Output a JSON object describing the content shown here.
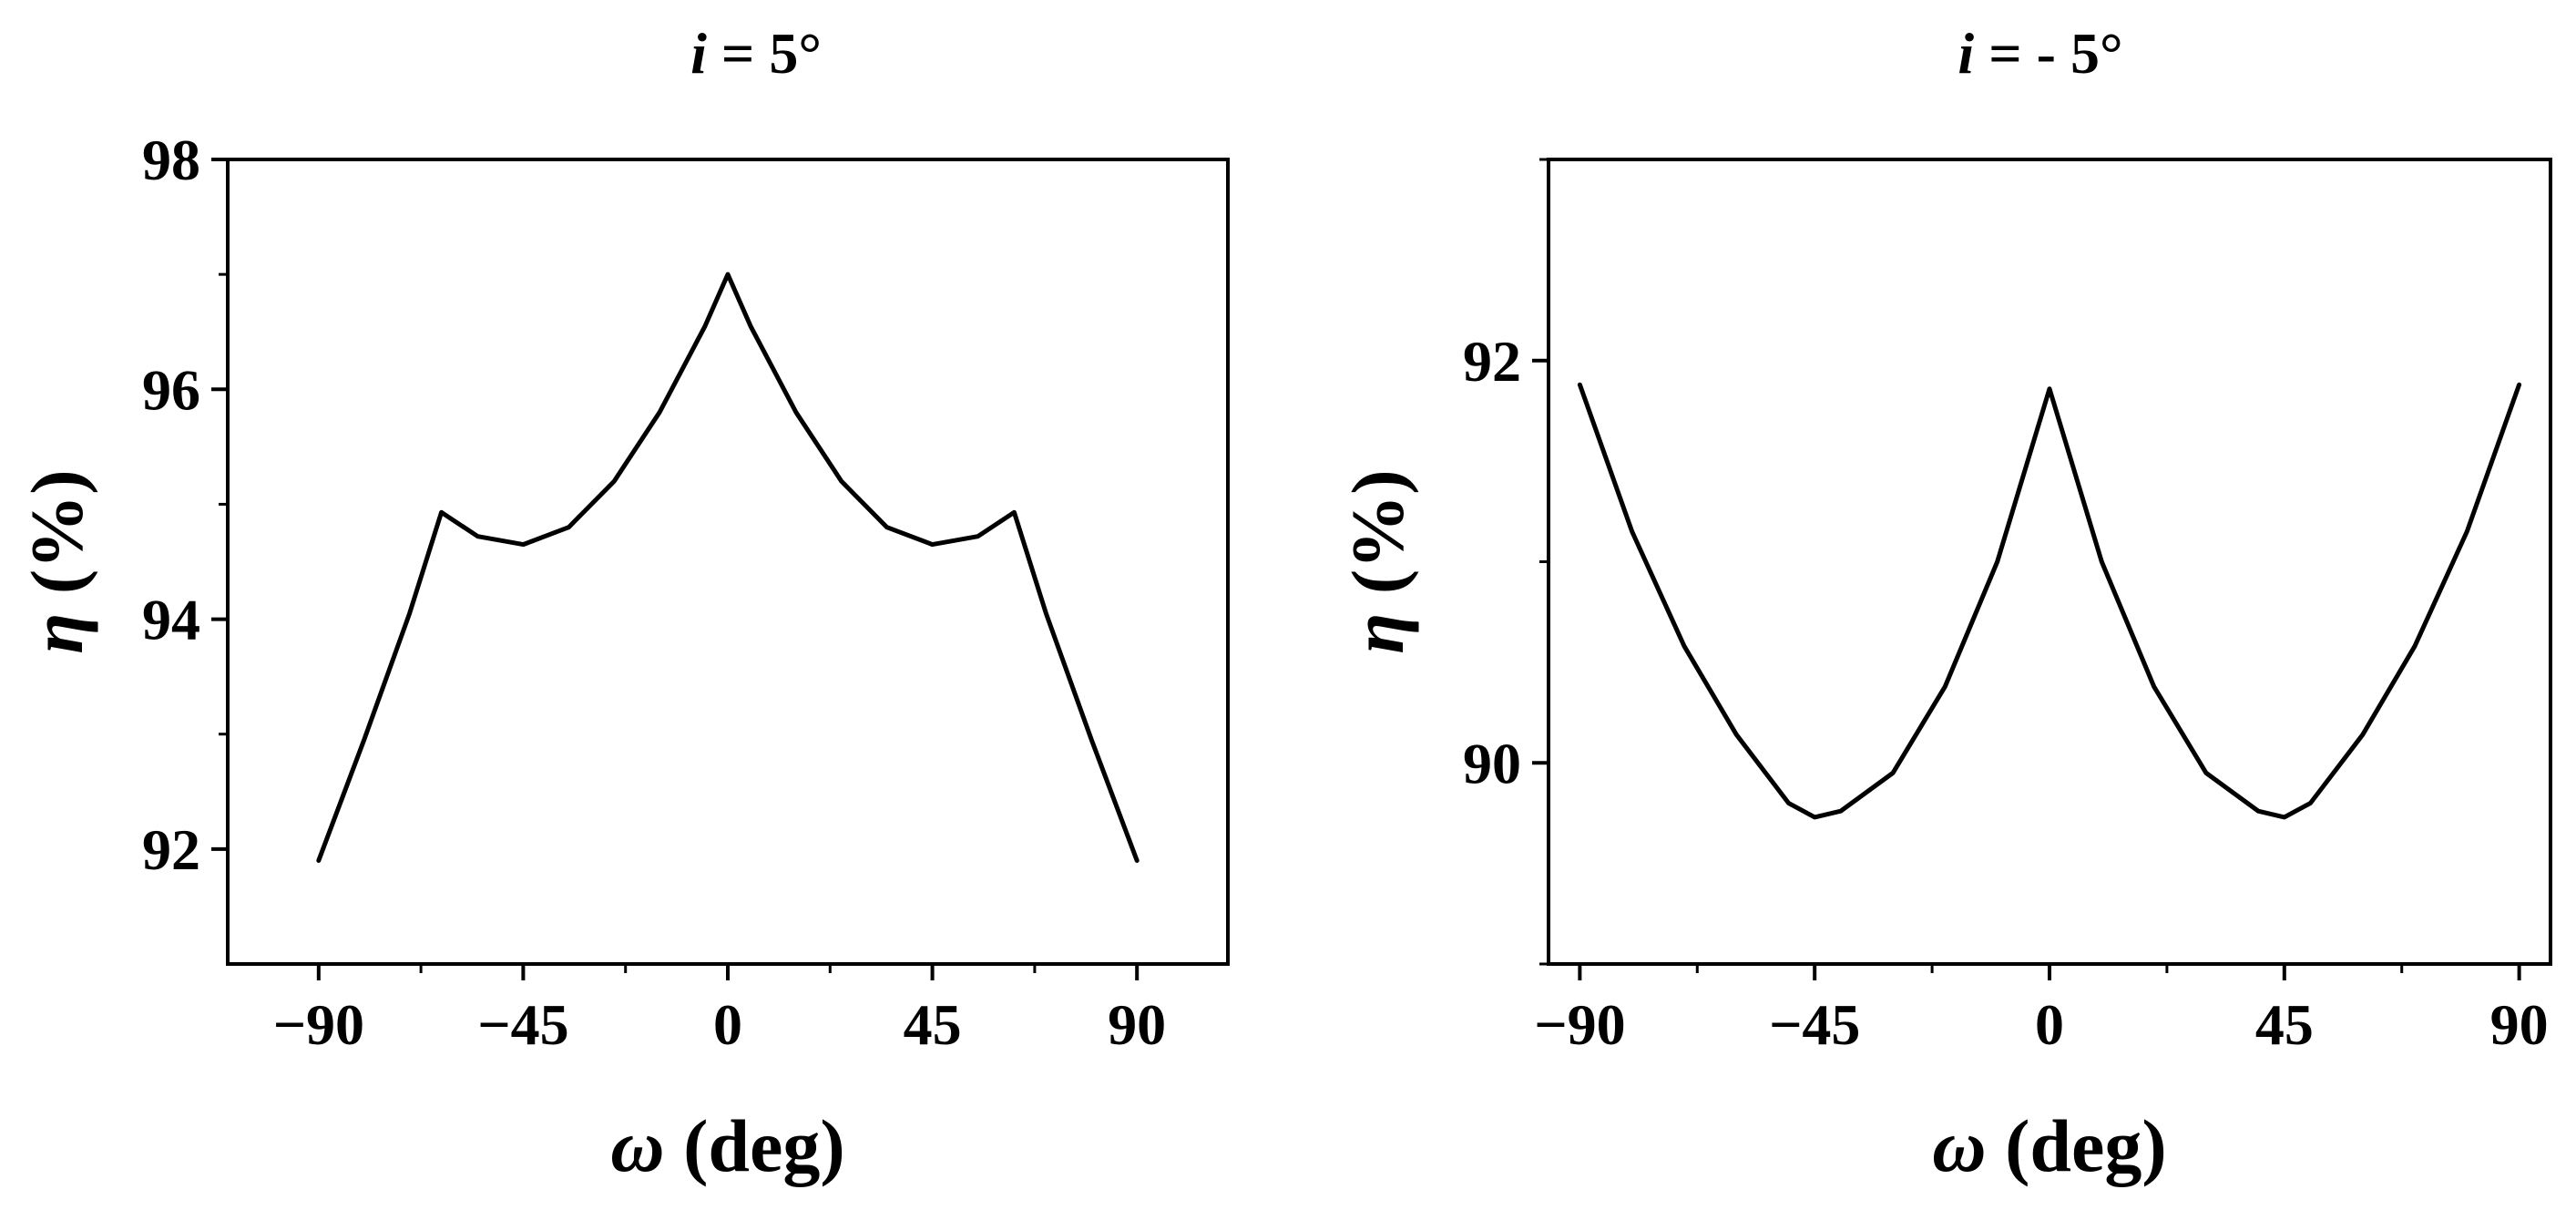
{
  "chart_data": [
    {
      "type": "line",
      "title": {
        "symbol": "i",
        "rest": " = 5°"
      },
      "xlabel": {
        "symbol": "ω",
        "rest": " (deg)"
      },
      "ylabel": {
        "symbol": "η",
        "rest": " (%)"
      },
      "xlim": [
        -110,
        110
      ],
      "ylim": [
        91,
        98
      ],
      "xticks": [
        -90,
        -45,
        0,
        45,
        90
      ],
      "xtick_labels": [
        "−90",
        "−45",
        "0",
        "45",
        "90"
      ],
      "xminor": [
        -67.5,
        -22.5,
        22.5,
        67.5
      ],
      "yticks": [
        92,
        94,
        96,
        98
      ],
      "ytick_labels": [
        "92",
        "94",
        "96",
        "98"
      ],
      "yminor": [
        93,
        95,
        97
      ],
      "grid": false,
      "series": [
        {
          "color": "#000000",
          "x": [
            -90,
            -80,
            -70,
            -63,
            -55,
            -45,
            -35,
            -25,
            -15,
            -5,
            0,
            5,
            15,
            25,
            35,
            45,
            55,
            63,
            70,
            80,
            90
          ],
          "y": [
            91.9,
            92.95,
            94.05,
            94.93,
            94.72,
            94.65,
            94.8,
            95.2,
            95.8,
            96.55,
            97.0,
            96.55,
            95.8,
            95.2,
            94.8,
            94.65,
            94.72,
            94.93,
            94.05,
            92.95,
            91.9
          ]
        }
      ]
    },
    {
      "type": "line",
      "title": {
        "symbol": "i",
        "rest": " = - 5°"
      },
      "xlabel": {
        "symbol": "ω",
        "rest": " (deg)"
      },
      "ylabel": {
        "symbol": "η",
        "rest": " (%)"
      },
      "xlim": [
        -96,
        96
      ],
      "ylim": [
        89,
        93
      ],
      "xticks": [
        -90,
        -45,
        0,
        45,
        90
      ],
      "xtick_labels": [
        "−90",
        "−45",
        "0",
        "45",
        "90"
      ],
      "xminor": [
        -67.5,
        -22.5,
        22.5,
        67.5
      ],
      "yticks": [
        90,
        92
      ],
      "ytick_labels": [
        "90",
        "92"
      ],
      "yminor": [
        89,
        91,
        93
      ],
      "grid": false,
      "series": [
        {
          "color": "#000000",
          "x": [
            -90,
            -80,
            -70,
            -60,
            -50,
            -45,
            -40,
            -30,
            -20,
            -10,
            0,
            10,
            20,
            30,
            40,
            45,
            50,
            60,
            70,
            80,
            90
          ],
          "y": [
            91.88,
            91.15,
            90.58,
            90.14,
            89.8,
            89.73,
            89.76,
            89.95,
            90.38,
            91.0,
            91.86,
            91.0,
            90.38,
            89.95,
            89.76,
            89.73,
            89.8,
            90.14,
            90.58,
            91.15,
            91.88
          ]
        }
      ]
    }
  ]
}
